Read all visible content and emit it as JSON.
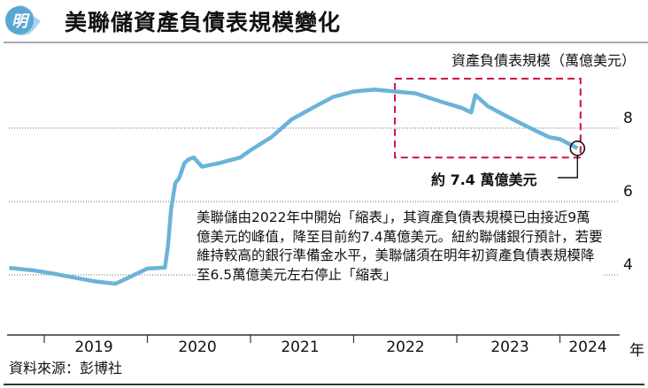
{
  "header": {
    "logo_text": "明",
    "title": "美聯儲資產負債表規模變化"
  },
  "chart_data": {
    "type": "line",
    "title": "美聯儲資產負債表規模變化",
    "ylabel": "資產負債表規模（萬億美元）",
    "xlabel": "年",
    "ylim": [
      3.5,
      9.5
    ],
    "xlim": [
      2018.6,
      2024.5
    ],
    "yticks": [
      "4",
      "6",
      "8"
    ],
    "ytick_values": [
      4,
      6,
      8
    ],
    "xticks": [
      "2019",
      "2020",
      "2021",
      "2022",
      "2023",
      "2024"
    ],
    "grid": "horizontal dotted",
    "line_color": "#6bb3d8",
    "x": [
      2018.66,
      2018.9,
      2019.1,
      2019.3,
      2019.5,
      2019.69,
      2019.8,
      2020.0,
      2020.17,
      2020.2,
      2020.23,
      2020.27,
      2020.31,
      2020.36,
      2020.4,
      2020.45,
      2020.53,
      2020.7,
      2020.9,
      2021.0,
      2021.2,
      2021.4,
      2021.6,
      2021.8,
      2022.0,
      2022.2,
      2022.4,
      2022.6,
      2022.85,
      2023.05,
      2023.14,
      2023.18,
      2023.3,
      2023.5,
      2023.75,
      2023.9,
      2024.0,
      2024.17
    ],
    "values": [
      4.19,
      4.12,
      4.03,
      3.92,
      3.82,
      3.76,
      3.9,
      4.17,
      4.2,
      4.8,
      5.8,
      6.5,
      6.65,
      7.05,
      7.15,
      7.2,
      6.95,
      7.05,
      7.2,
      7.4,
      7.75,
      8.24,
      8.55,
      8.85,
      9.0,
      9.05,
      9.0,
      8.95,
      8.72,
      8.55,
      8.43,
      8.9,
      8.6,
      8.3,
      7.95,
      7.75,
      7.7,
      7.45
    ],
    "annotations": {
      "callout": "約 7.4 萬億美元",
      "highlight_box": {
        "x_from": 2022.4,
        "x_to": 2024.2,
        "y_from": 7.2,
        "y_to": 9.35
      },
      "note": "美聯儲由2022年中開始「縮表」，其資產負債表規模已由接近9萬億美元的峰值，降至目前約7.4萬億美元。紐約聯儲銀行預計，若要維持較高的銀行準備金水平，美聯儲須在明年初資產負債表規模降至6.5萬億美元左右停止「縮表」"
    },
    "highlight_color": "#d0103a"
  },
  "footer": {
    "source": "資料來源：彭博社"
  }
}
